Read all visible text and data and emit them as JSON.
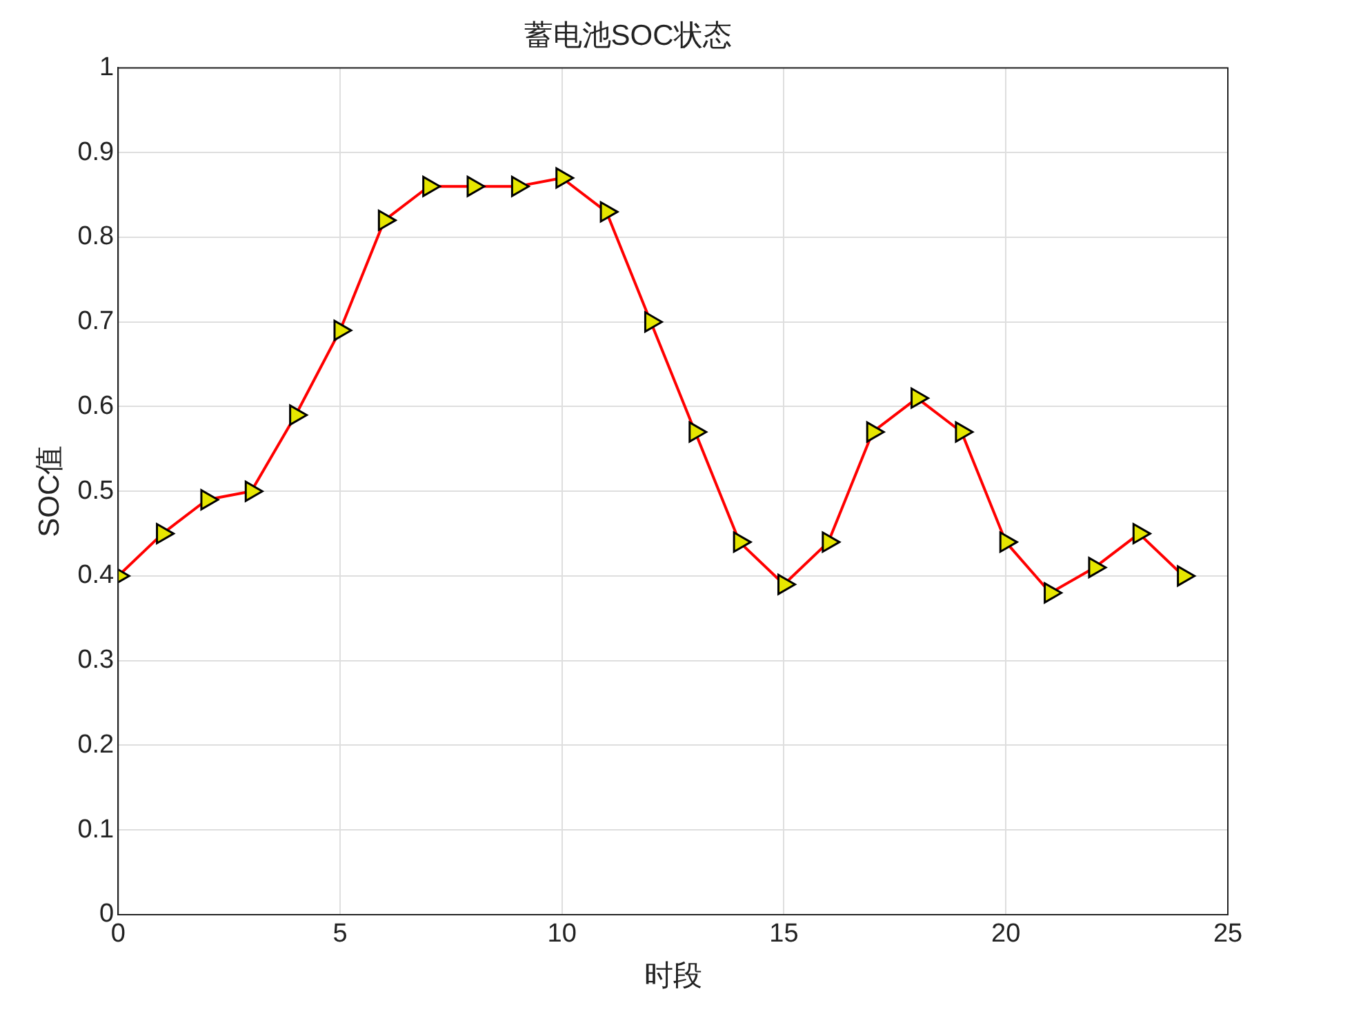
{
  "chart_data": {
    "type": "line",
    "title": "蓄电池SOC状态",
    "xlabel": "时段",
    "ylabel": "SOC值",
    "x": [
      0,
      1,
      2,
      3,
      4,
      5,
      6,
      7,
      8,
      9,
      10,
      11,
      12,
      13,
      14,
      15,
      16,
      17,
      18,
      19,
      20,
      21,
      22,
      23,
      24
    ],
    "series": [
      {
        "color": "#ff0000",
        "values": [
          0.4,
          0.45,
          0.49,
          0.5,
          0.59,
          0.69,
          0.82,
          0.86,
          0.86,
          0.86,
          0.87,
          0.83,
          0.7,
          0.57,
          0.44,
          0.39,
          0.44,
          0.57,
          0.61,
          0.57,
          0.44,
          0.38,
          0.41,
          0.45,
          0.4
        ]
      }
    ],
    "xlim": [
      0,
      25
    ],
    "xticks": [
      0,
      5,
      10,
      15,
      20,
      25
    ],
    "ylim": [
      0,
      1
    ],
    "yticks": [
      0,
      0.1,
      0.2,
      0.3,
      0.4,
      0.5,
      0.6,
      0.7,
      0.8,
      0.9,
      1
    ],
    "grid": true,
    "legend": false,
    "marker": "triangle",
    "line_style": "solid"
  }
}
